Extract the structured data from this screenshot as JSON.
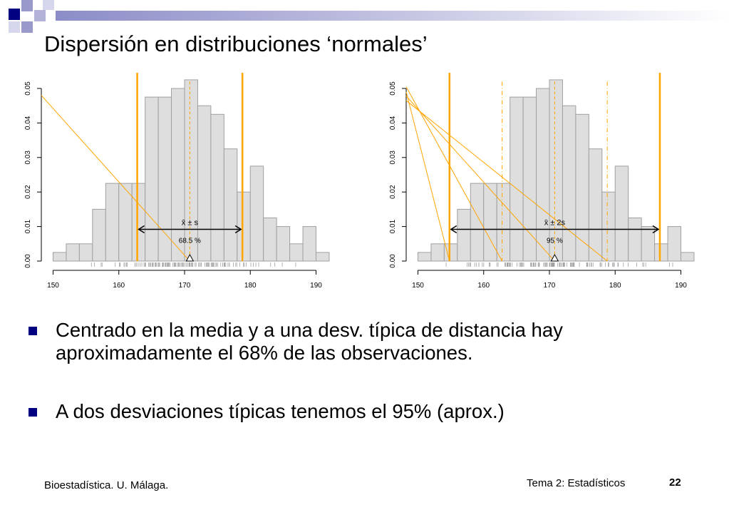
{
  "slide": {
    "title": "Dispersión en distribuciones ‘normales’",
    "bullets": [
      "Centrado en la media y a una desv. típica de distancia hay aproximadamente el 68% de las observaciones.",
      "A dos desviaciones típicas tenemos el 95% (aprox.)"
    ],
    "footer_left": "Bioestadística. U. Málaga.",
    "footer_topic": "Tema 2: Estadísticos",
    "page_number": "22",
    "colors": {
      "accent": "#000080",
      "orange": "#FFA500",
      "bar_fill": "#DEDEDE",
      "bar_stroke": "#A0A0A0"
    }
  },
  "chart_data": [
    {
      "type": "bar",
      "title": "",
      "xlabel": "",
      "ylabel": "",
      "xlim": [
        150,
        192
      ],
      "ylim": [
        0,
        0.052
      ],
      "bin_width": 2,
      "bin_starts": [
        150,
        152,
        154,
        156,
        158,
        160,
        162,
        164,
        166,
        168,
        170,
        172,
        174,
        176,
        178,
        180,
        182,
        184,
        186,
        188,
        190
      ],
      "values": [
        0.0025,
        0.005,
        0.005,
        0.015,
        0.0225,
        0.0225,
        0.0225,
        0.0475,
        0.0475,
        0.05,
        0.0525,
        0.045,
        0.0425,
        0.0325,
        0.02,
        0.0275,
        0.0125,
        0.01,
        0.005,
        0.01,
        0.0025
      ],
      "x_ticks": [
        "150",
        "160",
        "170",
        "180",
        "190"
      ],
      "y_ticks": [
        "0.00",
        "0.01",
        "0.02",
        "0.03",
        "0.04",
        "0.05"
      ],
      "mean": 170.8,
      "sd": 8,
      "k": 1,
      "interval": [
        162.8,
        178.8
      ],
      "interval_label": "x̄ ± s",
      "percent_label": "68.5 %"
    },
    {
      "type": "bar",
      "title": "",
      "xlabel": "",
      "ylabel": "",
      "xlim": [
        150,
        192
      ],
      "ylim": [
        0,
        0.052
      ],
      "bin_width": 2,
      "bin_starts": [
        150,
        152,
        154,
        156,
        158,
        160,
        162,
        164,
        166,
        168,
        170,
        172,
        174,
        176,
        178,
        180,
        182,
        184,
        186,
        188,
        190
      ],
      "values": [
        0.0025,
        0.005,
        0.005,
        0.015,
        0.0225,
        0.0225,
        0.0225,
        0.0475,
        0.0475,
        0.05,
        0.0525,
        0.045,
        0.0425,
        0.0325,
        0.02,
        0.0275,
        0.0125,
        0.01,
        0.005,
        0.01,
        0.0025
      ],
      "x_ticks": [
        "150",
        "160",
        "170",
        "180",
        "190"
      ],
      "y_ticks": [
        "0.00",
        "0.01",
        "0.02",
        "0.03",
        "0.04",
        "0.05"
      ],
      "mean": 170.8,
      "sd": 8,
      "k": 2,
      "interval": [
        154.8,
        186.8
      ],
      "inner_interval": [
        162.8,
        178.8
      ],
      "interval_label": "x̄ ± 2s",
      "percent_label": "95 %"
    }
  ]
}
